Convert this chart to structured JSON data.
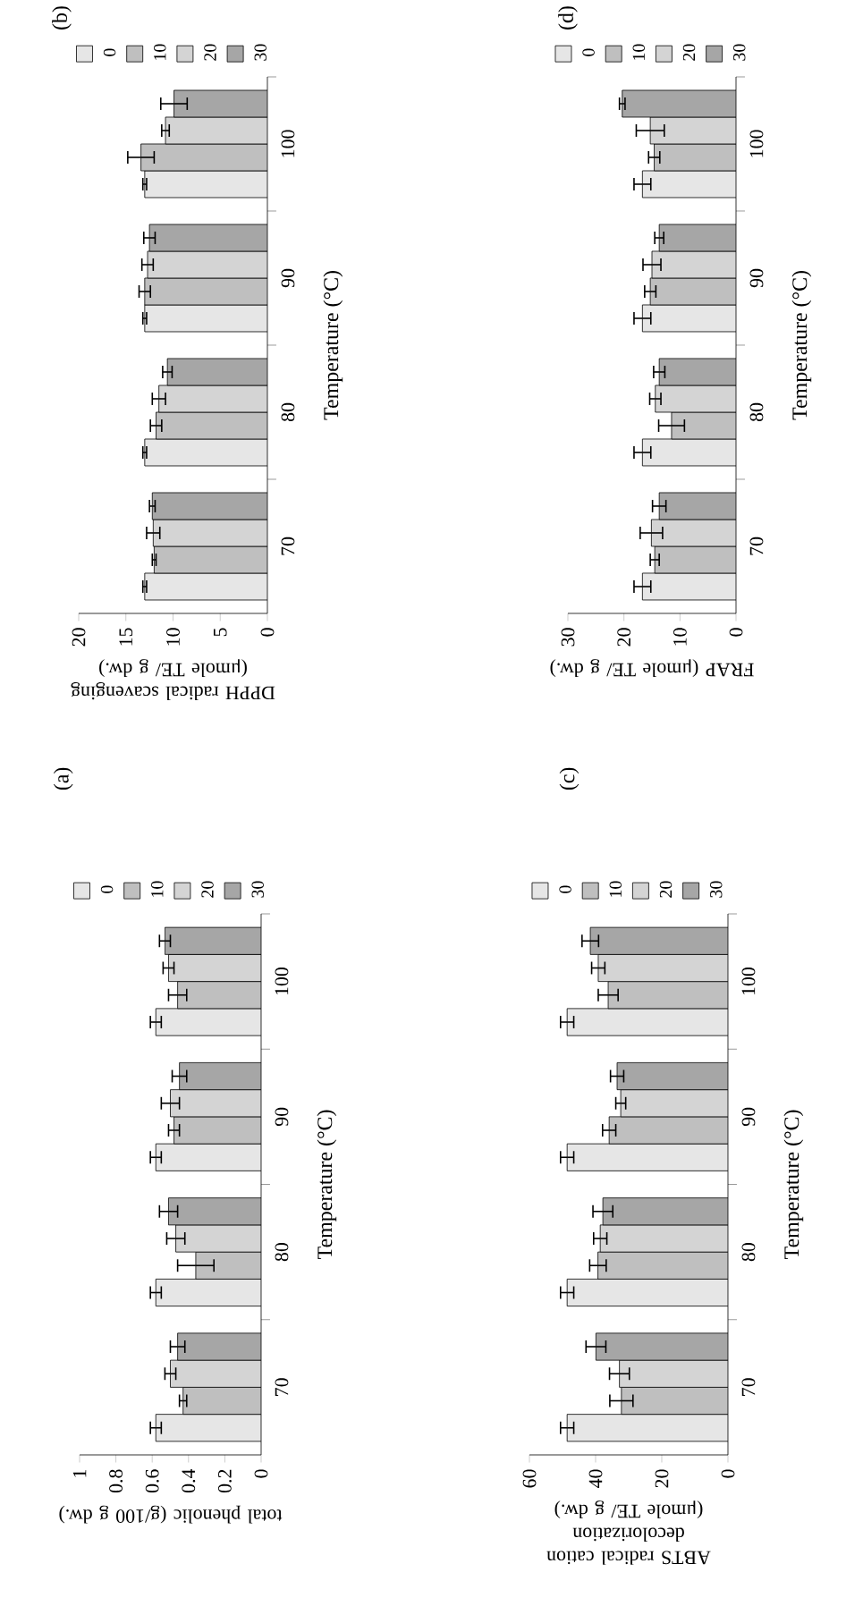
{
  "chart_data": [
    {
      "type": "bar",
      "orientation": "horizontal",
      "title": "(a)",
      "xlabel": "total phenolic (g/100 g dw.)",
      "ylabel": "Temperature (°C)",
      "categories": [
        "100",
        "90",
        "80",
        "70"
      ],
      "xlim": [
        1,
        0
      ],
      "xticks": [
        0,
        0.2,
        0.4,
        0.6,
        0.8,
        1
      ],
      "legend": "top",
      "series": [
        {
          "name": "0",
          "color": "#e6e6e6",
          "values": [
            0.58,
            0.58,
            0.58,
            0.58
          ],
          "errors": [
            0.03,
            0.03,
            0.03,
            0.03
          ]
        },
        {
          "name": "10",
          "color": "#bfbfbf",
          "values": [
            0.46,
            0.48,
            0.36,
            0.43
          ],
          "errors": [
            0.05,
            0.03,
            0.1,
            0.02
          ]
        },
        {
          "name": "20",
          "color": "#d4d4d4",
          "values": [
            0.51,
            0.5,
            0.47,
            0.5
          ],
          "errors": [
            0.03,
            0.05,
            0.05,
            0.03
          ]
        },
        {
          "name": "30",
          "color": "#a6a6a6",
          "values": [
            0.53,
            0.45,
            0.51,
            0.46
          ],
          "errors": [
            0.03,
            0.04,
            0.05,
            0.04
          ]
        }
      ]
    },
    {
      "type": "bar",
      "orientation": "horizontal",
      "title": "(b)",
      "xlabel": "DPPH radical scavenging (μmole TE/ g dw.)",
      "ylabel": "Temperature (°C)",
      "categories": [
        "100",
        "90",
        "80",
        "70"
      ],
      "xlim": [
        20,
        0
      ],
      "xticks": [
        0,
        5,
        10,
        15,
        20
      ],
      "legend": "top",
      "series": [
        {
          "name": "0",
          "color": "#e6e6e6",
          "values": [
            13.0,
            13.0,
            13.0,
            13.0
          ],
          "errors": [
            0.2,
            0.2,
            0.2,
            0.2
          ]
        },
        {
          "name": "10",
          "color": "#bfbfbf",
          "values": [
            13.4,
            13.0,
            11.8,
            12.0
          ],
          "errors": [
            1.4,
            0.6,
            0.6,
            0.2
          ]
        },
        {
          "name": "20",
          "color": "#d4d4d4",
          "values": [
            10.8,
            12.7,
            11.5,
            12.1
          ],
          "errors": [
            0.4,
            0.6,
            0.7,
            0.7
          ]
        },
        {
          "name": "30",
          "color": "#a6a6a6",
          "values": [
            9.9,
            12.5,
            10.6,
            12.2
          ],
          "errors": [
            1.4,
            0.6,
            0.5,
            0.3
          ]
        }
      ]
    },
    {
      "type": "bar",
      "orientation": "horizontal",
      "title": "(c)",
      "xlabel": "ABTS radical cation decolorization (μmole TE/ g dw.)",
      "ylabel": "Temperature (°C)",
      "categories": [
        "100",
        "90",
        "80",
        "70"
      ],
      "xlim": [
        60,
        0
      ],
      "xticks": [
        0,
        20,
        40,
        60
      ],
      "legend": "top",
      "series": [
        {
          "name": "0",
          "color": "#e6e6e6",
          "values": [
            48.6,
            48.6,
            48.6,
            48.6
          ],
          "errors": [
            2.0,
            2.0,
            2.0,
            2.0
          ]
        },
        {
          "name": "10",
          "color": "#bfbfbf",
          "values": [
            36.2,
            35.9,
            39.3,
            32.2
          ],
          "errors": [
            3.0,
            2.0,
            2.5,
            3.5
          ]
        },
        {
          "name": "20",
          "color": "#d4d4d4",
          "values": [
            39.2,
            32.4,
            38.6,
            32.8
          ],
          "errors": [
            2.0,
            1.5,
            2.0,
            3.0
          ]
        },
        {
          "name": "30",
          "color": "#a6a6a6",
          "values": [
            41.6,
            33.5,
            37.8,
            39.9
          ],
          "errors": [
            2.5,
            2.0,
            3.0,
            3.0
          ]
        }
      ]
    },
    {
      "type": "bar",
      "orientation": "horizontal",
      "title": "(d)",
      "xlabel": "FRAP (μmole TE/ g dw.)",
      "ylabel": "Temperature (°C)",
      "categories": [
        "100",
        "90",
        "80",
        "70"
      ],
      "xlim": [
        30,
        0
      ],
      "xticks": [
        0,
        10,
        20,
        30
      ],
      "legend": "top",
      "series": [
        {
          "name": "0",
          "color": "#e6e6e6",
          "values": [
            16.7,
            16.7,
            16.7,
            16.7
          ],
          "errors": [
            1.5,
            1.5,
            1.5,
            1.5
          ]
        },
        {
          "name": "10",
          "color": "#bfbfbf",
          "values": [
            14.6,
            15.3,
            11.5,
            14.5
          ],
          "errors": [
            1.0,
            1.0,
            2.3,
            0.8
          ]
        },
        {
          "name": "20",
          "color": "#d4d4d4",
          "values": [
            15.3,
            15.0,
            14.4,
            15.1
          ],
          "errors": [
            2.5,
            1.6,
            1.0,
            2.0
          ]
        },
        {
          "name": "30",
          "color": "#a6a6a6",
          "values": [
            20.3,
            13.7,
            13.7,
            13.7
          ],
          "errors": [
            0.5,
            0.8,
            1.0,
            1.2
          ]
        }
      ]
    }
  ]
}
